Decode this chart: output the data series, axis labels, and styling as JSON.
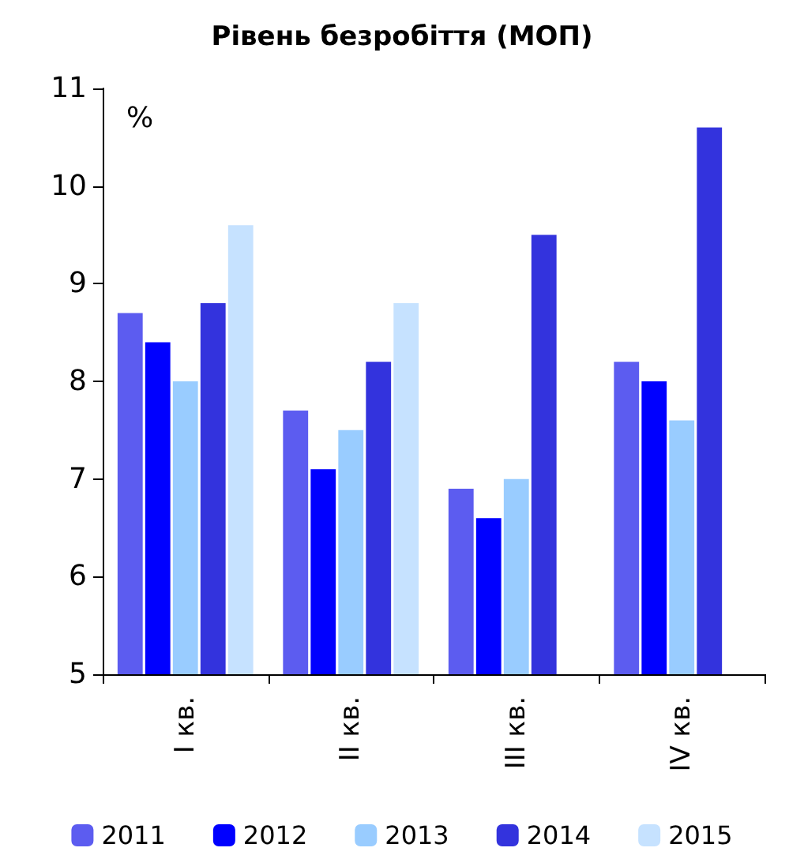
{
  "chart_data": {
    "type": "bar",
    "title": "Рівень безробіття (МОП)",
    "annotations": [
      "%"
    ],
    "categories": [
      "I кв.",
      "II кв.",
      "III кв.",
      "IV кв."
    ],
    "series": [
      {
        "name": "2011",
        "color": "#5c5cf0",
        "values": [
          8.7,
          7.7,
          6.9,
          8.2
        ]
      },
      {
        "name": "2012",
        "color": "#0000ff",
        "values": [
          8.4,
          7.1,
          6.6,
          8.0
        ]
      },
      {
        "name": "2013",
        "color": "#99ccff",
        "values": [
          8.0,
          7.5,
          7.0,
          7.6
        ]
      },
      {
        "name": "2014",
        "color": "#3333dd",
        "values": [
          8.8,
          8.2,
          9.5,
          10.6
        ]
      },
      {
        "name": "2015",
        "color": "#c6e2ff",
        "values": [
          9.6,
          8.8,
          null,
          null
        ]
      }
    ],
    "ylim": [
      5,
      11
    ],
    "yticks": [
      5,
      6,
      7,
      8,
      9,
      10,
      11
    ],
    "grid": false,
    "legend": "bottom"
  }
}
